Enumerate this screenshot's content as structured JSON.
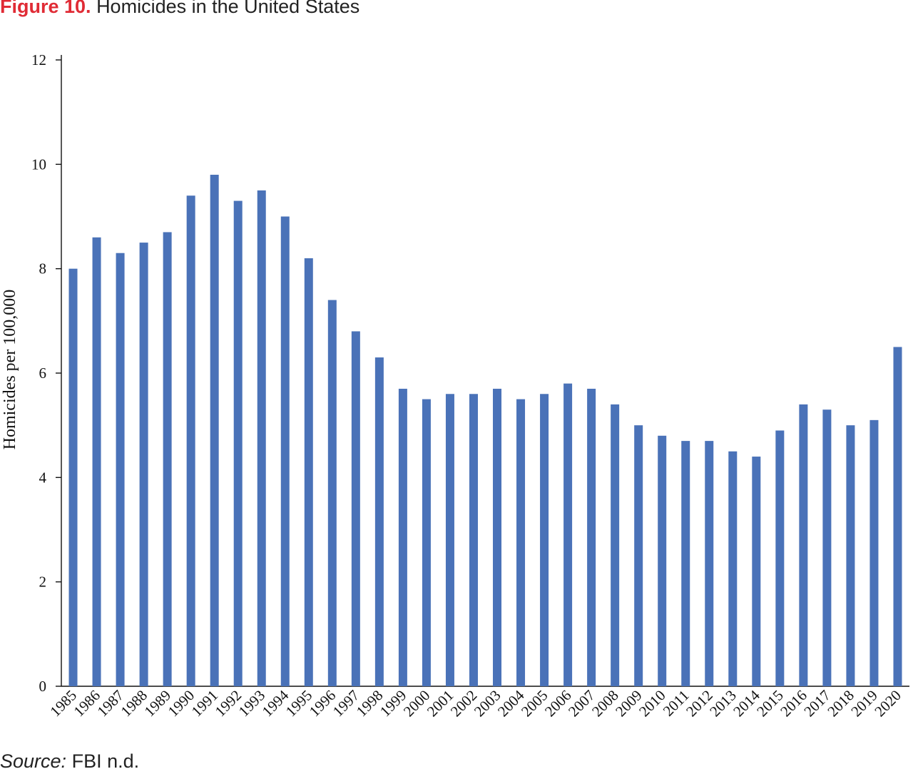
{
  "figure": {
    "number": "Figure 10.",
    "title": "Homicides in the United States"
  },
  "source": {
    "label": "Source:",
    "text": "FBI n.d."
  },
  "colors": {
    "bar": "#4a72b8",
    "figure_number": "#e02b35",
    "axis": "#111111"
  },
  "chart_data": {
    "type": "bar",
    "title": "Homicides in the United States",
    "xlabel": "",
    "ylabel": "Homicides per 100,000",
    "ylim": [
      0,
      12
    ],
    "yticks": [
      0,
      2,
      4,
      6,
      8,
      10,
      12
    ],
    "grid": false,
    "legend": "none",
    "categories": [
      "1985",
      "1986",
      "1987",
      "1988",
      "1989",
      "1990",
      "1991",
      "1992",
      "1993",
      "1994",
      "1995",
      "1996",
      "1997",
      "1998",
      "1999",
      "2000",
      "2001",
      "2002",
      "2003",
      "2004",
      "2005",
      "2006",
      "2007",
      "2008",
      "2009",
      "2010",
      "2011",
      "2012",
      "2013",
      "2014",
      "2015",
      "2016",
      "2017",
      "2018",
      "2019",
      "2020"
    ],
    "values": [
      8.0,
      8.6,
      8.3,
      8.5,
      8.7,
      9.4,
      9.8,
      9.3,
      9.5,
      9.0,
      8.2,
      7.4,
      6.8,
      6.3,
      5.7,
      5.5,
      5.6,
      5.6,
      5.7,
      5.5,
      5.6,
      5.8,
      5.7,
      5.4,
      5.0,
      4.8,
      4.7,
      4.7,
      4.5,
      4.4,
      4.9,
      5.4,
      5.3,
      5.0,
      5.1,
      6.5
    ]
  }
}
